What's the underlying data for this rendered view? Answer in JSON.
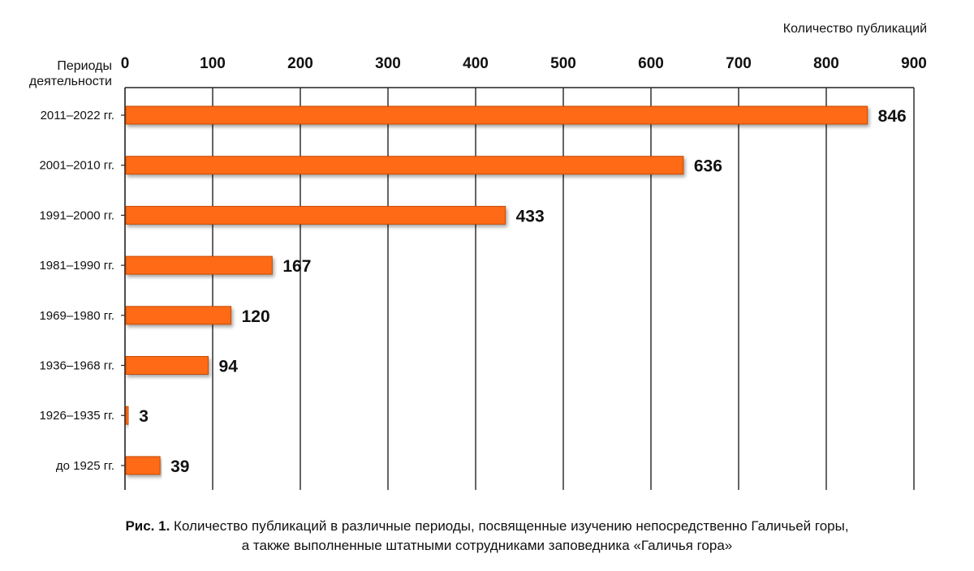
{
  "chart_data": {
    "type": "bar",
    "orientation": "horizontal",
    "xlabel": "Количество публикаций",
    "ylabel": [
      "Периоды",
      "деятельности"
    ],
    "xlim": [
      0,
      900
    ],
    "xticks": [
      0,
      100,
      200,
      300,
      400,
      500,
      600,
      700,
      800,
      900
    ],
    "grid": true,
    "categories": [
      "2011–2022 гг.",
      "2001–2010 гг.",
      "1991–2000 гг.",
      "1981–1990 гг.",
      "1969–1980 гг.",
      "1936–1968 гг.",
      "1926–1935 гг.",
      "до 1925 гг."
    ],
    "values": [
      846,
      636,
      433,
      167,
      120,
      94,
      3,
      39
    ],
    "colors": {
      "bar": "#ff6a13",
      "bar_edge": "#c44a06",
      "grid": "#222222"
    }
  },
  "caption": {
    "prefix": "Рис. 1.",
    "line1": "Количество публикаций в различные периоды, посвященные изучению непосредственно Галичьей горы,",
    "line2": "а также выполненные штатными сотрудниками заповедника «Галичья гора»"
  }
}
